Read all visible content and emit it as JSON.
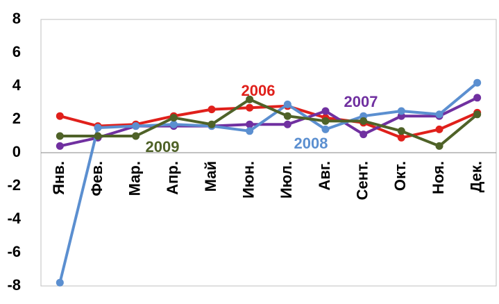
{
  "chart_data": {
    "type": "line",
    "categories": [
      "Янв.",
      "Фев.",
      "Мар.",
      "Апр.",
      "Май",
      "Июн.",
      "Июл.",
      "Авг.",
      "Сент.",
      "Окт.",
      "Ноя.",
      "Дек."
    ],
    "series": [
      {
        "name": "2006",
        "color": "#e0201b",
        "values": [
          2.2,
          1.6,
          1.7,
          2.2,
          2.6,
          2.7,
          2.8,
          2.1,
          1.8,
          0.9,
          1.4,
          2.4
        ]
      },
      {
        "name": "2007",
        "color": "#7030a0",
        "values": [
          0.4,
          0.9,
          1.6,
          1.6,
          1.6,
          1.7,
          1.7,
          2.5,
          1.1,
          2.2,
          2.2,
          3.3
        ]
      },
      {
        "name": "2008",
        "color": "#5b8fd0",
        "values": [
          -7.8,
          1.5,
          1.6,
          1.7,
          1.6,
          1.3,
          2.9,
          1.4,
          2.2,
          2.5,
          2.3,
          4.2
        ]
      },
      {
        "name": "2009",
        "color": "#4f6228",
        "values": [
          1.0,
          1.0,
          1.0,
          2.1,
          1.7,
          3.2,
          2.2,
          1.9,
          1.9,
          1.3,
          0.4,
          2.3
        ]
      }
    ],
    "ylim": [
      -8,
      8
    ],
    "yticks": [
      -8,
      -6,
      -4,
      -2,
      0,
      2,
      4,
      6,
      8
    ],
    "grid": false
  }
}
